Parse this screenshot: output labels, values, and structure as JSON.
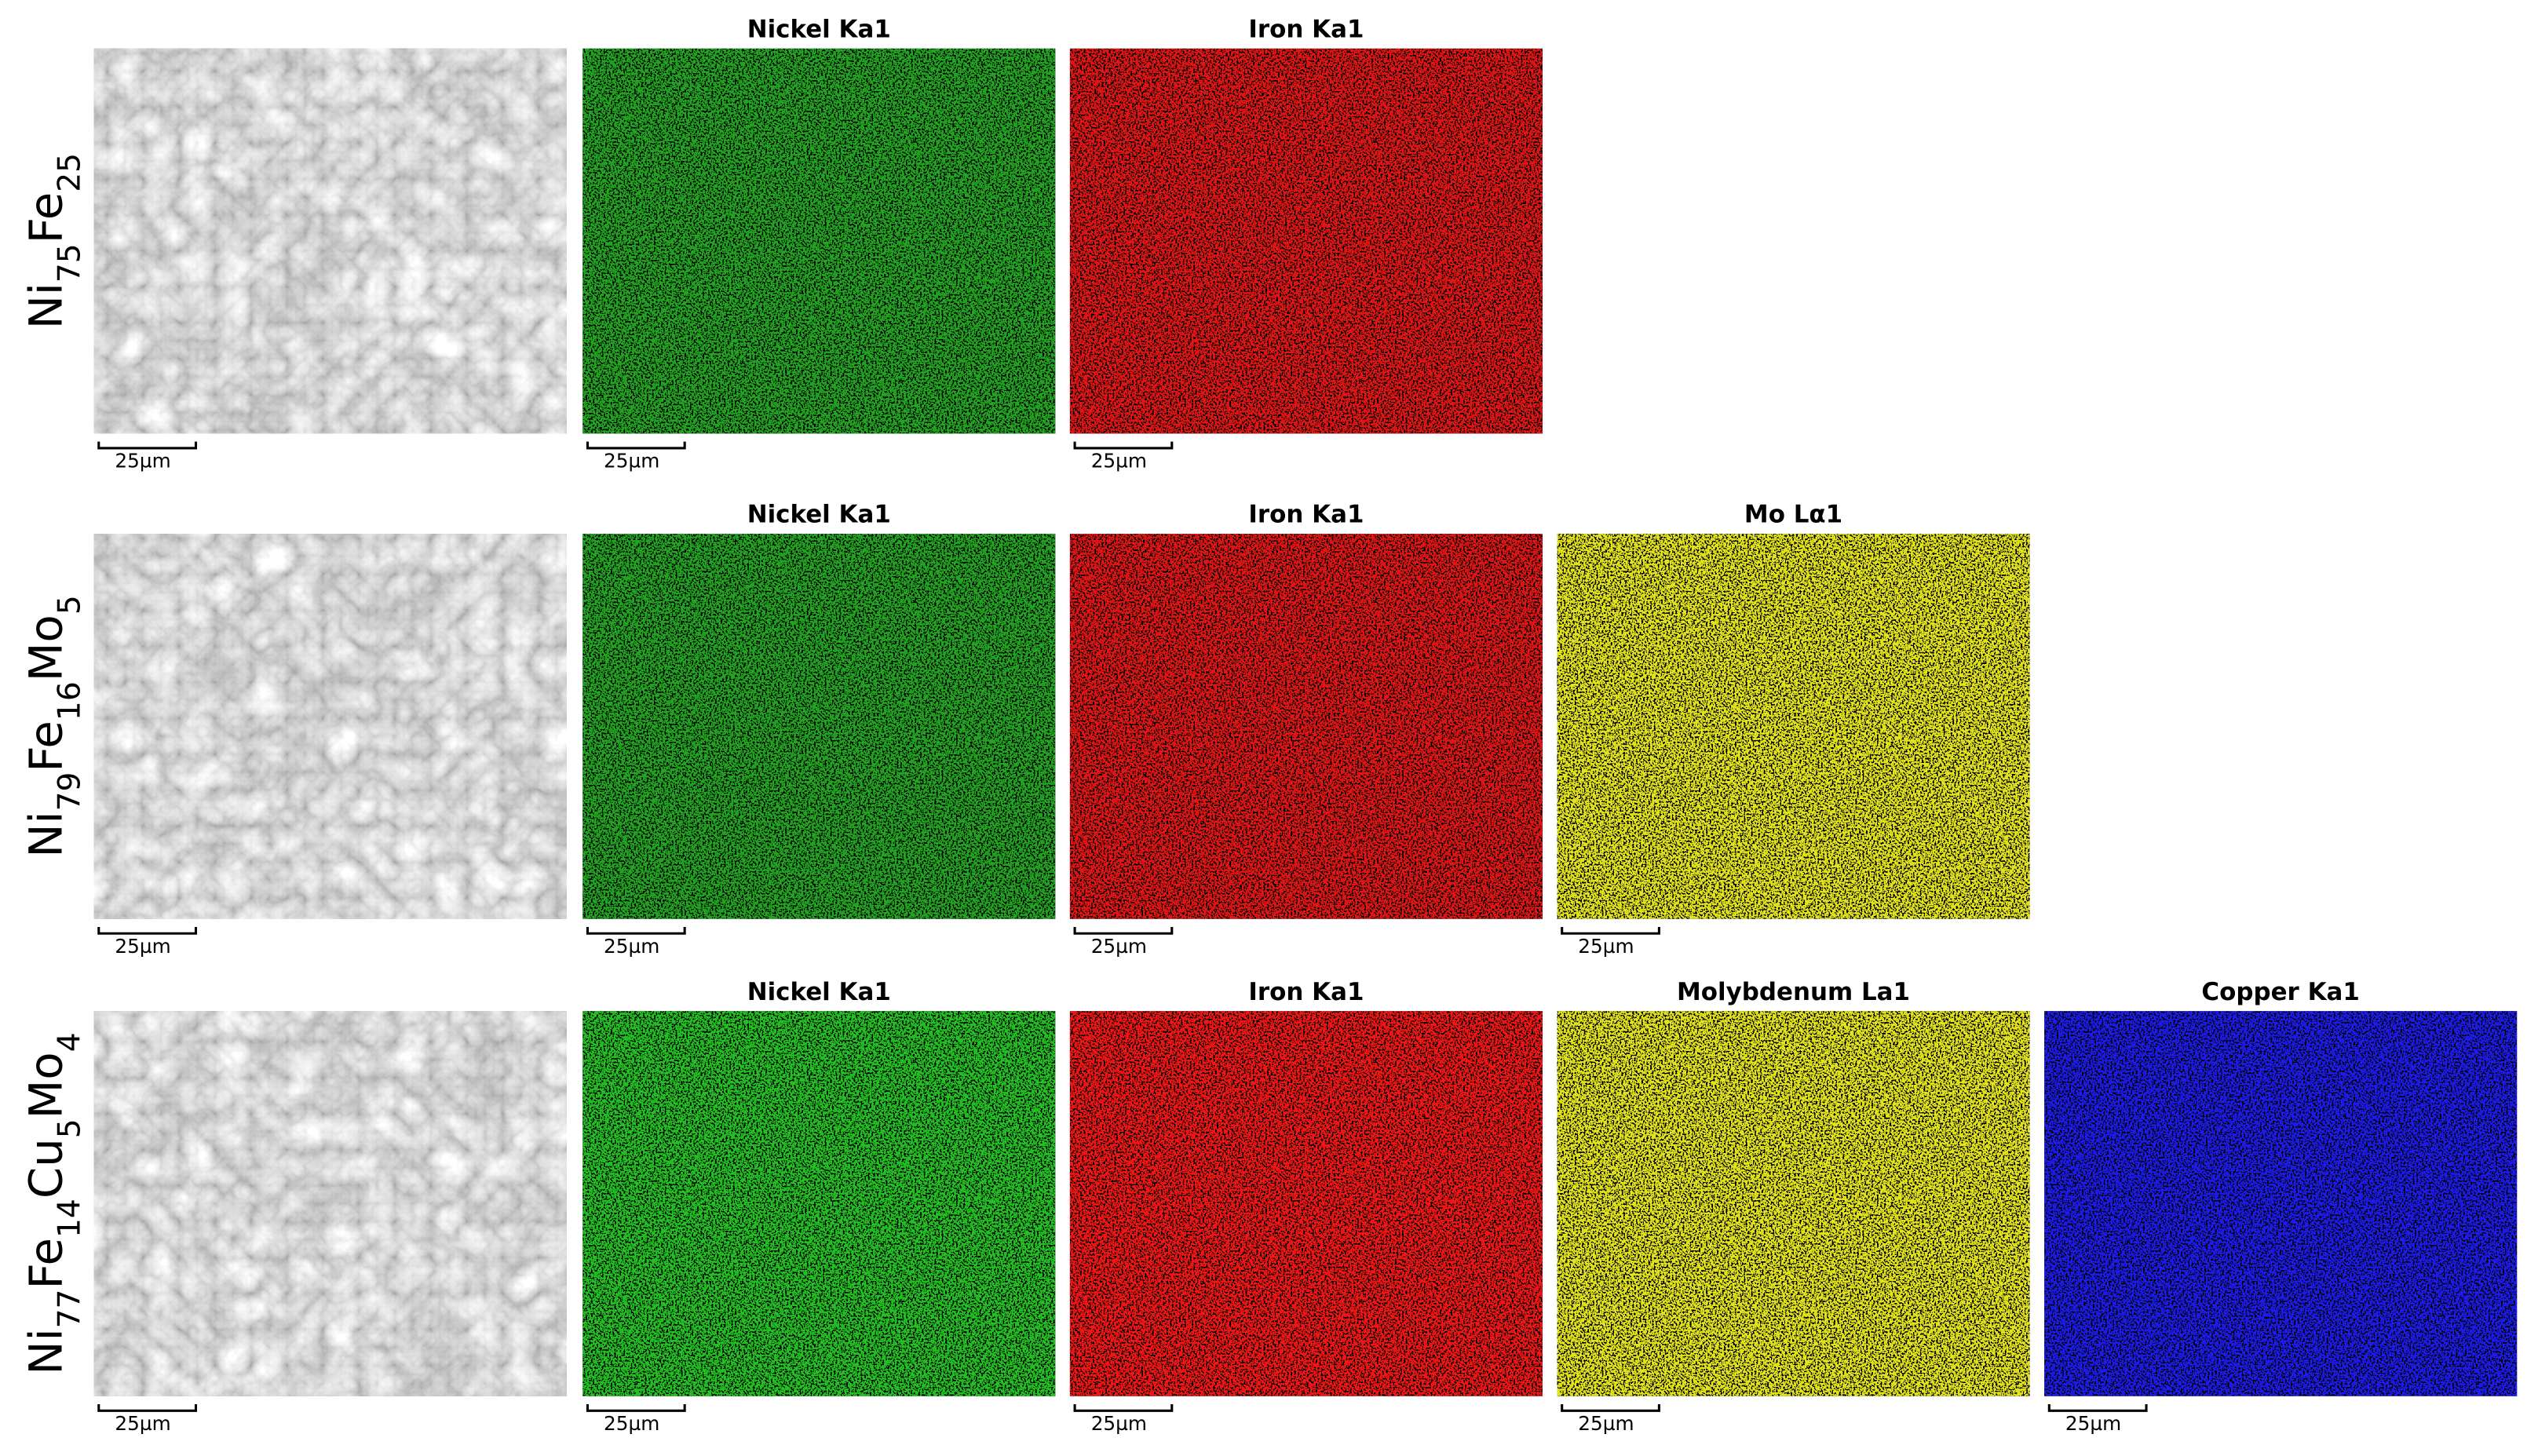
{
  "rows": [
    {
      "formula": [
        [
          "Ni",
          "75"
        ],
        [
          "Fe",
          "25"
        ]
      ],
      "sem": {
        "scale_bar": "25µm"
      },
      "maps": [
        {
          "title": "Nickel Ka1",
          "color": "#22a322",
          "scale_bar": "25µm"
        },
        {
          "title": "Iron Ka1",
          "color": "#e01212",
          "scale_bar": "25µm"
        }
      ]
    },
    {
      "formula": [
        [
          "Ni",
          "79"
        ],
        [
          "Fe",
          "16"
        ],
        [
          "Mo",
          "5"
        ]
      ],
      "sem": {
        "scale_bar": "25µm"
      },
      "maps": [
        {
          "title": "Nickel Ka1",
          "color": "#22a322",
          "scale_bar": "25µm"
        },
        {
          "title": "Iron Ka1",
          "color": "#e01212",
          "scale_bar": "25µm"
        },
        {
          "title": "Mo Lα1",
          "color": "#e3e31c",
          "scale_bar": "25µm"
        }
      ]
    },
    {
      "formula": [
        [
          "Ni",
          "77"
        ],
        [
          "Fe",
          "14"
        ],
        [
          "Cu",
          "5"
        ],
        [
          "Mo",
          "4"
        ]
      ],
      "sem": {
        "scale_bar": "25µm"
      },
      "maps": [
        {
          "title": "Nickel Ka1",
          "color": "#22c022",
          "scale_bar": "25µm"
        },
        {
          "title": "Iron Ka1",
          "color": "#f01414",
          "scale_bar": "25µm"
        },
        {
          "title": "Molybdenum La1",
          "color": "#e3e31c",
          "scale_bar": "25µm"
        },
        {
          "title": "Copper Ka1",
          "color": "#1c1ce6",
          "scale_bar": "25µm"
        }
      ]
    }
  ]
}
